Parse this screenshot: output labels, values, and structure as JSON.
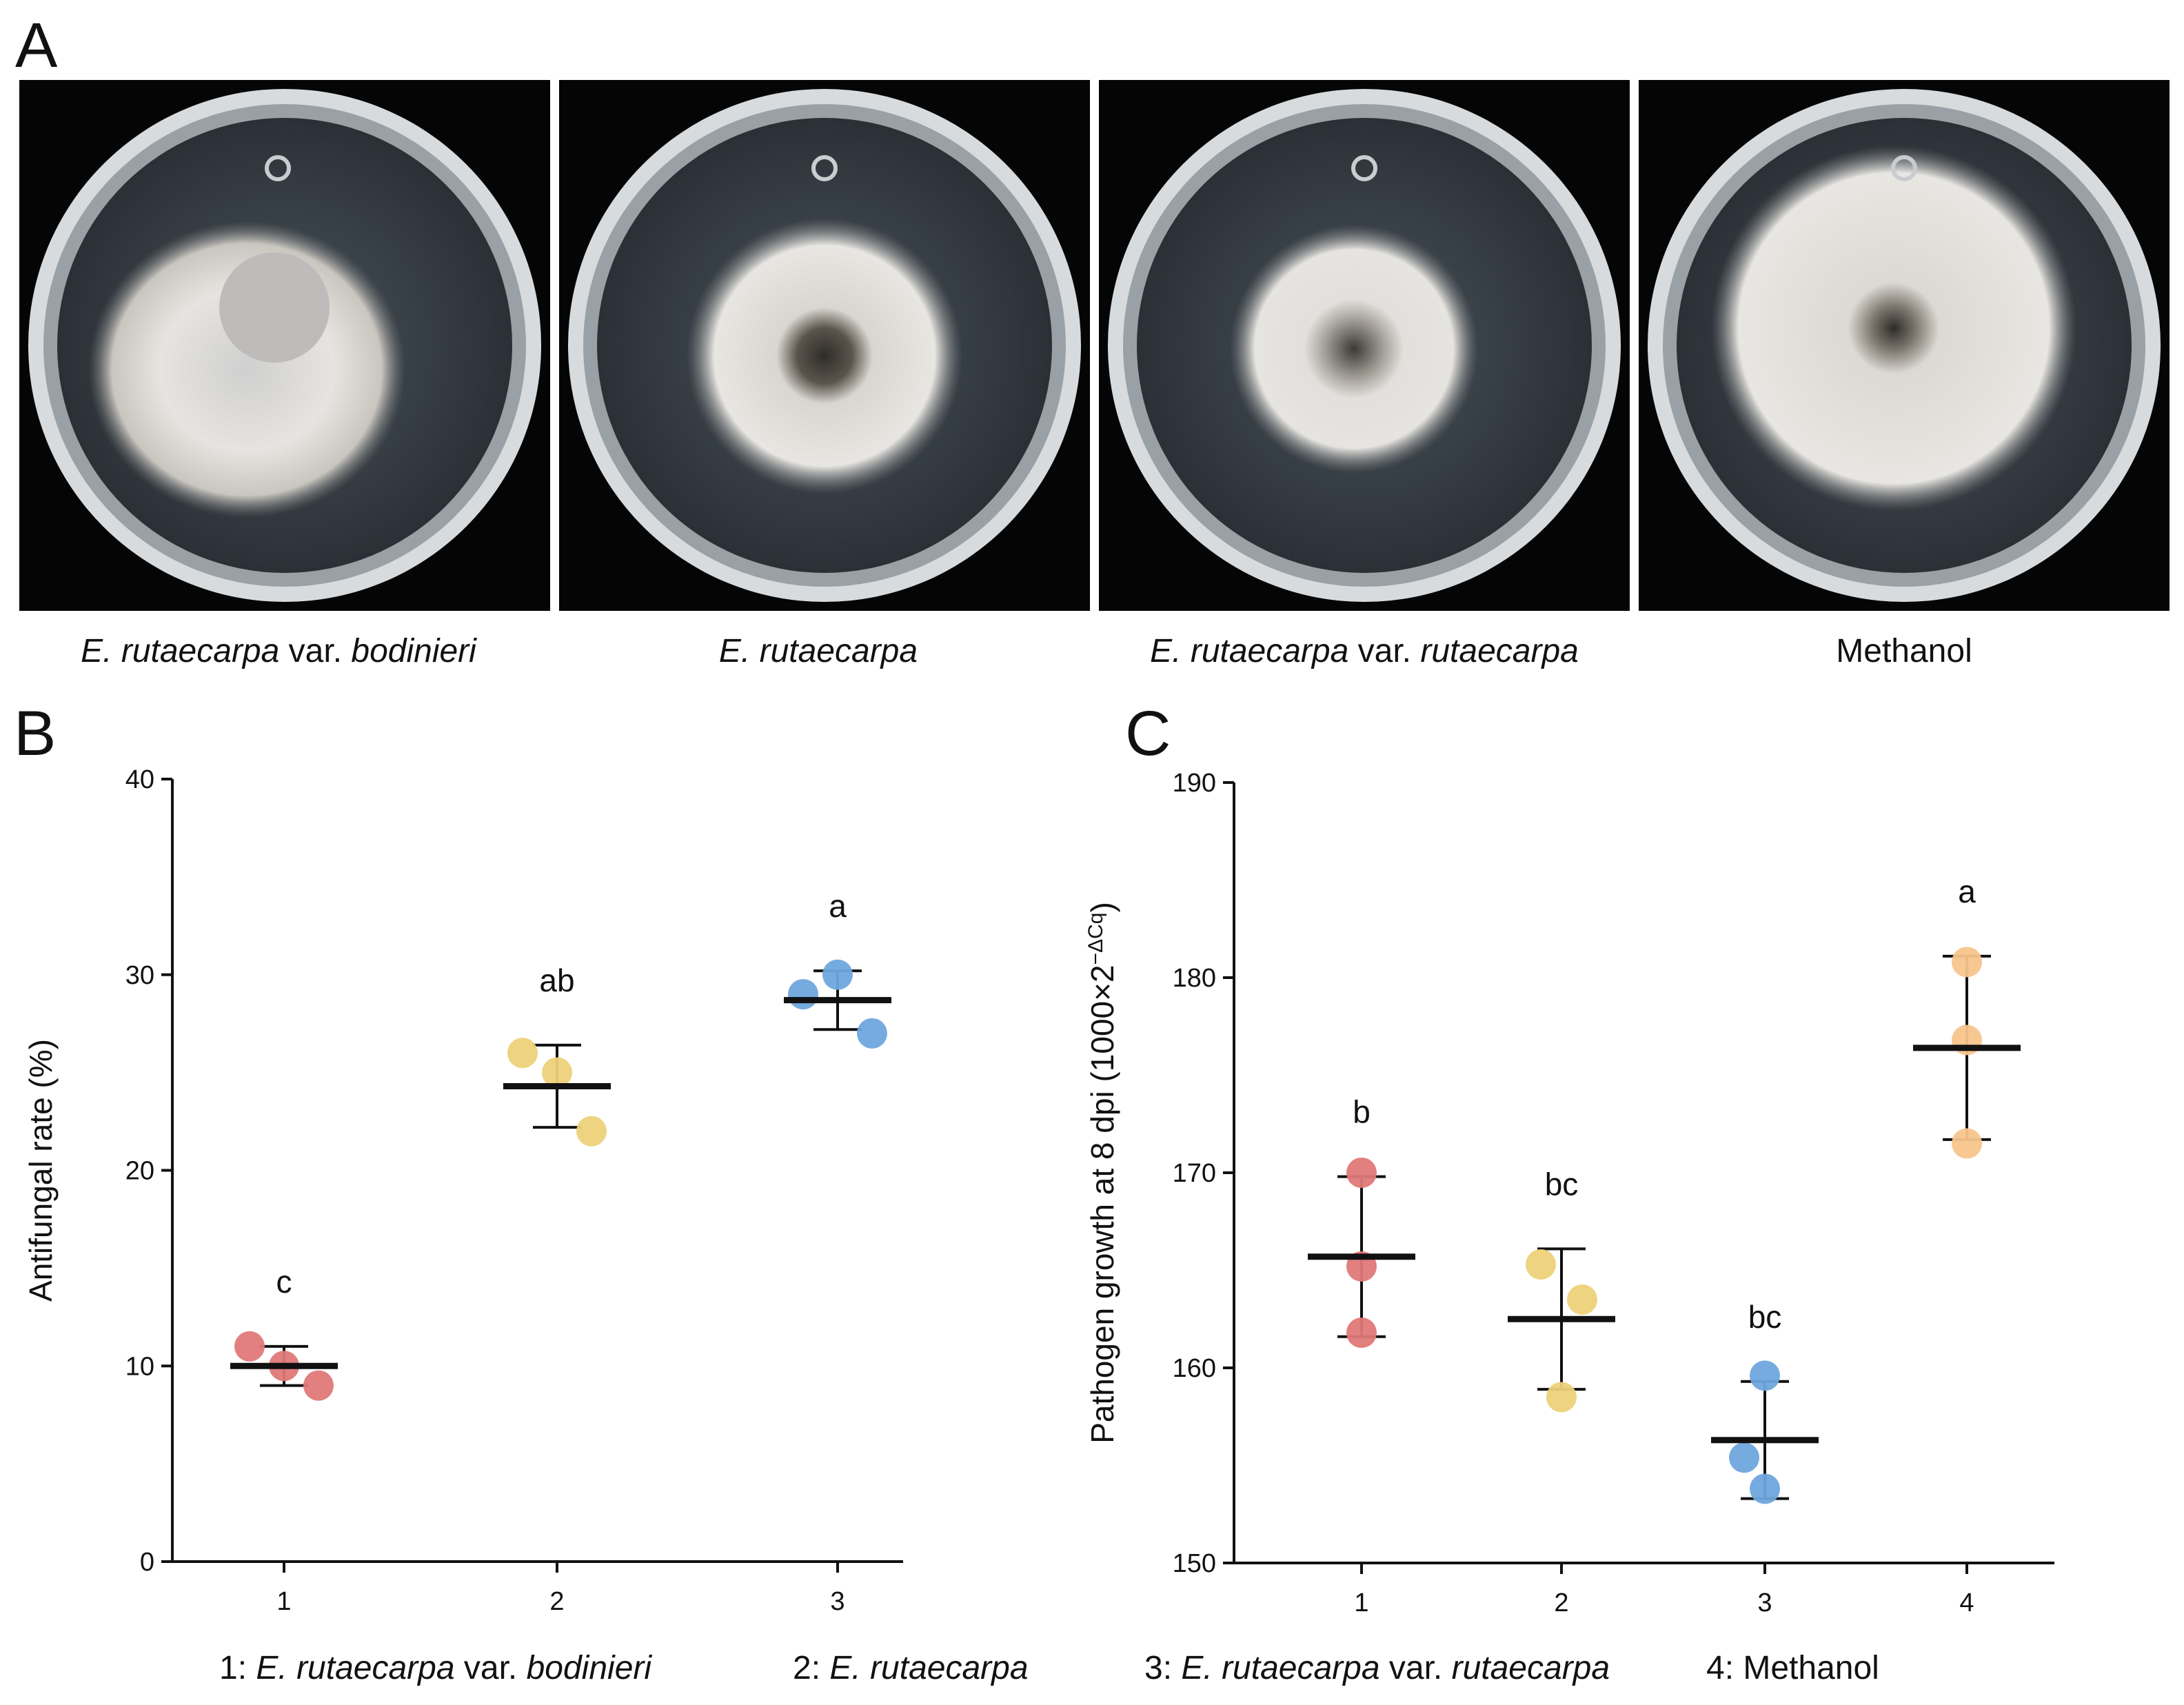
{
  "panels": {
    "A": "A",
    "B": "B",
    "C": "C"
  },
  "photos": [
    {
      "caption_italic": "E. rutaecarpa",
      "caption_rest": " var. ",
      "caption_italic2": "bodinieri"
    },
    {
      "caption_italic": "E. rutaecarpa",
      "caption_rest": "",
      "caption_italic2": ""
    },
    {
      "caption_italic": "E. rutaecarpa",
      "caption_rest": " var. ",
      "caption_italic2": "rutaecarpa"
    },
    {
      "caption_plain": "Methanol"
    }
  ],
  "colors": {
    "red": "#E07878",
    "yellow": "#EDD27A",
    "blue": "#6FA6DE",
    "orange": "#F8C58C"
  },
  "legend": [
    {
      "prefix": "1: ",
      "italic": "E. rutaecarpa",
      "rest": " var. ",
      "italic2": "bodinieri"
    },
    {
      "prefix": "2: ",
      "italic": "E. rutaecarpa",
      "rest": "",
      "italic2": ""
    },
    {
      "prefix": "3: ",
      "italic": "E. rutaecarpa",
      "rest": " var. ",
      "italic2": "rutaecarpa"
    },
    {
      "prefix": "4: ",
      "italic": "",
      "rest": "Methanol",
      "italic2": ""
    }
  ],
  "chart_data": [
    {
      "id": "B",
      "type": "scatter",
      "title": "",
      "xlabel": "",
      "ylabel": "Antifungal rate (%)",
      "ylim": [
        0,
        40
      ],
      "yticks": [
        0,
        10,
        20,
        30,
        40
      ],
      "categories": [
        "1",
        "2",
        "3"
      ],
      "groups": [
        {
          "category": "1",
          "color": "red",
          "points": [
            11.0,
            10.0,
            9.0
          ],
          "mean": 10.0,
          "sd": 1.0,
          "letter": "c"
        },
        {
          "category": "2",
          "color": "yellow",
          "points": [
            26.0,
            25.0,
            22.0
          ],
          "mean": 24.3,
          "sd": 2.1,
          "letter": "ab"
        },
        {
          "category": "3",
          "color": "blue",
          "points": [
            29.0,
            30.0,
            27.0
          ],
          "mean": 28.7,
          "sd": 1.5,
          "letter": "a"
        }
      ]
    },
    {
      "id": "C",
      "type": "scatter",
      "title": "",
      "xlabel": "",
      "ylabel": "Pathogen growth at 8 dpi (1000×2",
      "ylabel_sup": "−ΔCq",
      "ylabel_end": ")",
      "ylim": [
        150,
        190
      ],
      "yticks": [
        150,
        160,
        170,
        180,
        190
      ],
      "categories": [
        "1",
        "2",
        "3",
        "4"
      ],
      "groups": [
        {
          "category": "1",
          "color": "red",
          "points": [
            170.0,
            165.2,
            161.8
          ],
          "mean": 165.7,
          "sd": 4.1,
          "letter": "b"
        },
        {
          "category": "2",
          "color": "yellow",
          "points": [
            165.3,
            163.5,
            158.5
          ],
          "mean": 162.5,
          "sd": 3.6,
          "letter": "bc"
        },
        {
          "category": "3",
          "color": "blue",
          "points": [
            159.6,
            155.4,
            153.8
          ],
          "mean": 156.3,
          "sd": 3.0,
          "letter": "bc"
        },
        {
          "category": "4",
          "color": "orange",
          "points": [
            180.8,
            176.8,
            171.5
          ],
          "mean": 176.4,
          "sd": 4.7,
          "letter": "a"
        }
      ]
    }
  ]
}
